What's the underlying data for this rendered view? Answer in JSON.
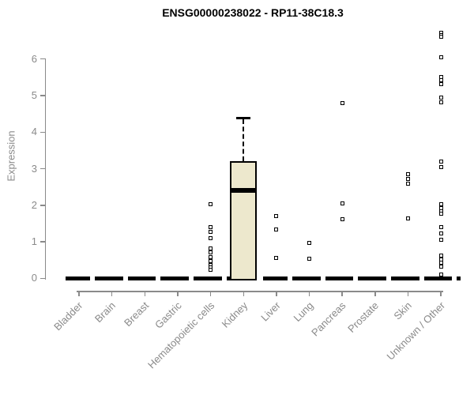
{
  "chart_data": {
    "type": "boxplot",
    "title": "ENSG00000238022 - RP11-38C18.3",
    "ylabel": "Expression",
    "xlabel": "",
    "ylim": [
      0,
      6.8
    ],
    "yticks": [
      0,
      1,
      2,
      3,
      4,
      5,
      6
    ],
    "grid": false,
    "legend": "none",
    "colors": {
      "box_fill": "#EDE8CD",
      "box_stroke": "#000000",
      "median": "#000000",
      "axis_text": "#8A8A8A",
      "title_text": "#000000"
    },
    "categories": [
      "Bladder",
      "Brain",
      "Breast",
      "Gastric",
      "Hematopoietic cells",
      "Kidney",
      "Liver",
      "Lung",
      "Pancreas",
      "Prostate",
      "Skin",
      "Unknown / Other"
    ],
    "boxes": [
      {
        "category": "Bladder",
        "q1": 0,
        "median": 0,
        "q3": 0,
        "whisker_low": 0,
        "whisker_high": 0,
        "outliers": []
      },
      {
        "category": "Brain",
        "q1": 0,
        "median": 0,
        "q3": 0,
        "whisker_low": 0,
        "whisker_high": 0,
        "outliers": []
      },
      {
        "category": "Breast",
        "q1": 0,
        "median": 0,
        "q3": 0,
        "whisker_low": 0,
        "whisker_high": 0,
        "outliers": []
      },
      {
        "category": "Gastric",
        "q1": 0,
        "median": 0,
        "q3": 0,
        "whisker_low": 0,
        "whisker_high": 0,
        "outliers": []
      },
      {
        "category": "Hematopoietic cells",
        "q1": 0,
        "median": 0,
        "q3": 0,
        "whisker_low": 0,
        "whisker_high": 0,
        "outliers": [
          2.02,
          1.41,
          1.28,
          1.09,
          0.81,
          0.7,
          0.59,
          0.48,
          0.37,
          0.29,
          0.24
        ]
      },
      {
        "category": "Kidney",
        "q1": 0,
        "median": 2.4,
        "q3": 3.2,
        "whisker_low": 0,
        "whisker_high": 4.4,
        "outliers": []
      },
      {
        "category": "Liver",
        "q1": 0,
        "median": 0,
        "q3": 0,
        "whisker_low": 0,
        "whisker_high": 0,
        "outliers": [
          1.7,
          1.33,
          0.55
        ]
      },
      {
        "category": "Lung",
        "q1": 0,
        "median": 0,
        "q3": 0,
        "whisker_low": 0,
        "whisker_high": 0,
        "outliers": [
          0.97,
          0.53
        ]
      },
      {
        "category": "Pancreas",
        "q1": 0,
        "median": 0,
        "q3": 0,
        "whisker_low": 0,
        "whisker_high": 0,
        "outliers": [
          4.79,
          2.04,
          1.61
        ]
      },
      {
        "category": "Prostate",
        "q1": 0,
        "median": 0,
        "q3": 0,
        "whisker_low": 0,
        "whisker_high": 0,
        "outliers": []
      },
      {
        "category": "Skin",
        "q1": 0,
        "median": 0,
        "q3": 0,
        "whisker_low": 0,
        "whisker_high": 0,
        "outliers": [
          2.84,
          2.71,
          2.58,
          1.63
        ]
      },
      {
        "category": "Unknown / Other",
        "q1": 0,
        "median": 0,
        "q3": 0,
        "whisker_low": 0,
        "whisker_high": 0,
        "outliers": [
          6.72,
          6.66,
          6.6,
          6.05,
          5.5,
          5.42,
          5.32,
          4.95,
          4.82,
          3.2,
          3.05,
          2.02,
          1.93,
          1.84,
          1.76,
          1.41,
          1.23,
          1.05,
          0.63,
          0.52,
          0.42,
          0.33,
          0.11
        ]
      }
    ]
  }
}
